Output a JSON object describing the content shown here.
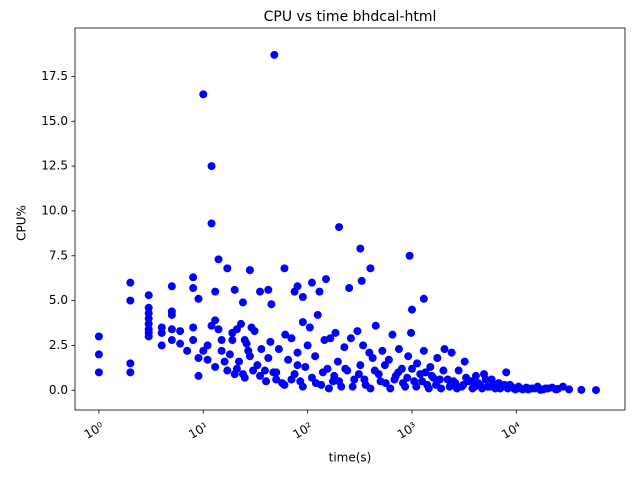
{
  "chart_data": {
    "type": "scatter",
    "title": "CPU vs time bhdcal-html",
    "x_label": "time(s)",
    "y_label": "CPU%",
    "color": "#0000ff",
    "x_scale": "log",
    "xlim": [
      0.59,
      110000
    ],
    "ylim": [
      -1.1,
      20.2
    ],
    "xticks": [
      {
        "value": 1,
        "label": "10⁰"
      },
      {
        "value": 10,
        "label": "10¹"
      },
      {
        "value": 100,
        "label": "10²"
      },
      {
        "value": 1000,
        "label": "10³"
      },
      {
        "value": 10000,
        "label": "10⁴"
      }
    ],
    "yticks": [
      {
        "value": 0,
        "label": "0.0"
      },
      2.5,
      {
        "value": 5,
        "label": "5.0"
      },
      7.5,
      {
        "value": 10,
        "label": "10.0"
      },
      12.5,
      {
        "value": 15,
        "label": "15.0"
      },
      17.5
    ],
    "x": [
      1,
      1,
      1,
      2,
      2,
      2,
      2,
      3,
      3,
      3,
      3,
      3,
      3,
      3,
      3,
      4,
      4,
      4,
      5,
      5,
      5,
      5,
      5,
      6,
      6,
      7,
      8,
      8,
      8,
      8,
      9,
      9,
      10,
      12,
      12,
      14,
      13,
      17,
      20,
      24,
      28,
      35,
      42,
      48,
      45,
      60,
      200,
      320,
      400,
      950,
      1000,
      1300,
      330,
      250,
      150,
      110,
      80,
      75,
      90,
      130,
      9,
      10,
      11,
      12,
      13,
      14,
      15,
      16,
      18,
      19,
      11,
      13,
      15,
      17,
      19,
      21,
      23,
      25,
      27,
      29,
      21,
      22,
      24,
      26,
      28,
      31,
      33,
      36,
      39,
      42,
      44,
      47,
      50,
      53,
      57,
      61,
      65,
      70,
      75,
      80,
      85,
      90,
      95,
      100,
      105,
      110,
      118,
      125,
      135,
      145,
      155,
      165,
      175,
      185,
      195,
      210,
      225,
      240,
      260,
      280,
      300,
      320,
      340,
      360,
      390,
      420,
      450,
      480,
      520,
      560,
      600,
      650,
      700,
      750,
      800,
      860,
      920,
      980,
      1050,
      1120,
      1200,
      1300,
      1400,
      1500,
      1600,
      1750,
      1900,
      2050,
      2200,
      2400,
      2600,
      2800,
      3000,
      3200,
      3500,
      3800,
      4100,
      4500,
      4900,
      5300,
      5800,
      6300,
      6800,
      7400,
      8000,
      8700,
      9500,
      10500,
      11500,
      12500,
      14000,
      16000,
      18000,
      20000,
      22000,
      25000,
      28000,
      32000,
      42000,
      58000,
      20,
      25,
      30,
      35,
      40,
      50,
      60,
      70,
      80,
      90,
      120,
      140,
      160,
      180,
      200,
      230,
      270,
      310,
      350,
      400,
      440,
      500,
      550,
      620,
      680,
      740,
      820,
      900,
      1000,
      1100,
      1250,
      1350,
      1450,
      1550,
      1700,
      1850,
      2000,
      2300,
      2500,
      2700,
      3100,
      3300,
      3700,
      4000,
      4300,
      4700,
      5100,
      5600,
      6100,
      7000,
      7700,
      8300,
      9000,
      9800,
      11000,
      13000,
      15000,
      17000,
      19000,
      24000
    ],
    "values": [
      3,
      2,
      1,
      6,
      5,
      1.5,
      1,
      5.3,
      4.6,
      4.3,
      4,
      3.7,
      3.4,
      3.2,
      3,
      3.5,
      3.2,
      2.5,
      5.8,
      4.4,
      4.2,
      3.4,
      2.8,
      3.3,
      2.6,
      2.2,
      6.3,
      5.7,
      3.5,
      2.8,
      5.1,
      0.8,
      16.5,
      12.5,
      9.3,
      7.3,
      5.5,
      6.8,
      5.6,
      4.9,
      6.7,
      5.5,
      5.6,
      18.7,
      4.8,
      6.8,
      9.1,
      7.9,
      6.8,
      7.5,
      4.5,
      5.1,
      6.1,
      5.7,
      6.2,
      6,
      5.8,
      5.5,
      5.2,
      5.5,
      1.8,
      2.2,
      2.5,
      3.6,
      3.9,
      3.4,
      2.8,
      1.6,
      2,
      3.2,
      1.7,
      1.3,
      2.2,
      1.1,
      2.8,
      3.4,
      3.7,
      2.8,
      2.2,
      3.5,
      1.2,
      1.6,
      0.9,
      2.6,
      1.9,
      3.3,
      1.4,
      2.3,
      1.1,
      1.8,
      2.7,
      1,
      0.6,
      2.3,
      0.4,
      3.1,
      1.7,
      2.9,
      0.9,
      2.1,
      0.5,
      3.8,
      1.3,
      2.5,
      3.5,
      0.7,
      1.9,
      4.2,
      0.3,
      2.8,
      1.2,
      2.9,
      0.5,
      3.2,
      1.6,
      0.2,
      2.4,
      1.1,
      2.9,
      0.6,
      3.3,
      1.4,
      2.5,
      0.3,
      2.1,
      1.8,
      3.6,
      0.9,
      2.2,
      0.4,
      1.7,
      3.1,
      0.8,
      2.3,
      1.2,
      0.2,
      1.9,
      3.2,
      0.5,
      1.5,
      0.9,
      2.2,
      0.3,
      1.3,
      0.7,
      1.8,
      0.1,
      2.3,
      0.6,
      2.1,
      0.4,
      1.1,
      0.2,
      1.6,
      0.5,
      0.1,
      0.8,
      0.3,
      0.9,
      0.2,
      0.6,
      0.1,
      0.4,
      0.2,
      1,
      0.3,
      0.1,
      0.2,
      0.05,
      0.15,
      0.1,
      0.2,
      0.05,
      0.1,
      0.15,
      0.08,
      0.2,
      0.05,
      0.02,
      0.01,
      0.9,
      0.7,
      1.1,
      0.8,
      0.5,
      1,
      0.3,
      0.6,
      1.4,
      0.2,
      0.4,
      1,
      0.1,
      0.8,
      0.5,
      1.2,
      0.2,
      0.9,
      0.6,
      0.1,
      1.1,
      0.5,
      1.4,
      0.1,
      0.6,
      1,
      0.4,
      0.7,
      1.2,
      0.2,
      0.5,
      1,
      0.1,
      0.8,
      0.3,
      0.6,
      1.1,
      0.2,
      0.5,
      0.1,
      0.3,
      0.7,
      0.5,
      0.2,
      0.4,
      0.1,
      0.6,
      0.2,
      0.3,
      0.1,
      0.3,
      0.1,
      0.2,
      0.05,
      0.1,
      0.05,
      0.1,
      0.02,
      0.1,
      0.05
    ]
  }
}
